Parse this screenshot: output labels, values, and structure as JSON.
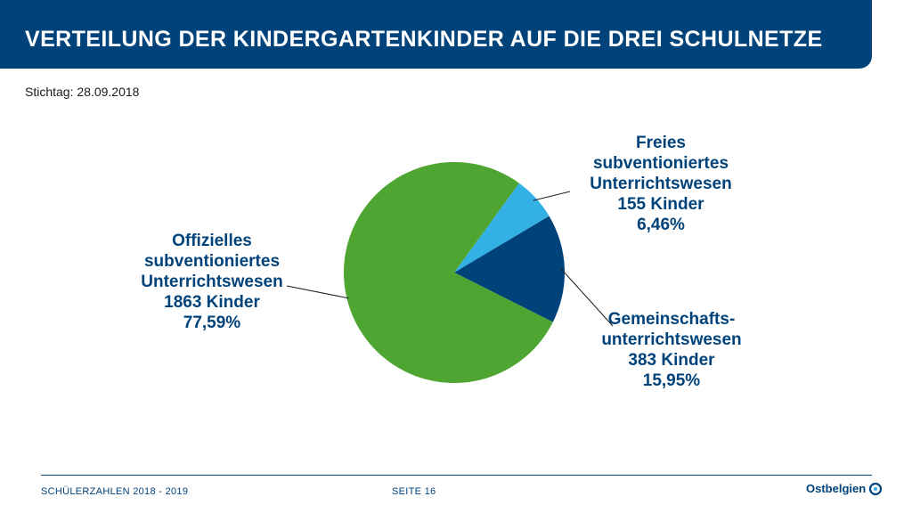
{
  "header": {
    "title": "VERTEILUNG DER KINDERGARTENKINDER AUF DIE DREI SCHULNETZE"
  },
  "subtitle": "Stichtag: 28.09.2018",
  "chart_data": {
    "type": "pie",
    "title": "",
    "slices": [
      {
        "label_lines": [
          "Freies",
          "subventioniertes",
          "Unterrichtswesen"
        ],
        "count_text": "155 Kinder",
        "percent_text": "6,46%",
        "value": 155,
        "percent": 6.46,
        "color": "#33b0e4"
      },
      {
        "label_lines": [
          "Gemeinschafts-",
          "unterrichtswesen"
        ],
        "count_text": "383 Kinder",
        "percent_text": "15,95%",
        "value": 383,
        "percent": 15.95,
        "color": "#00427a"
      },
      {
        "label_lines": [
          "Offizielles",
          "subventioniertes",
          "Unterrichtswesen"
        ],
        "count_text": "1863 Kinder",
        "percent_text": "77,59%",
        "value": 1863,
        "percent": 77.59,
        "color": "#4ea531"
      }
    ]
  },
  "footer": {
    "left": "SCHÜLERZAHLEN 2018 - 2019",
    "center": "SEITE 16"
  },
  "logo": {
    "text": "Ostbelgien"
  },
  "colors": {
    "header_bg": "#00427a",
    "label_text": "#00427a"
  }
}
